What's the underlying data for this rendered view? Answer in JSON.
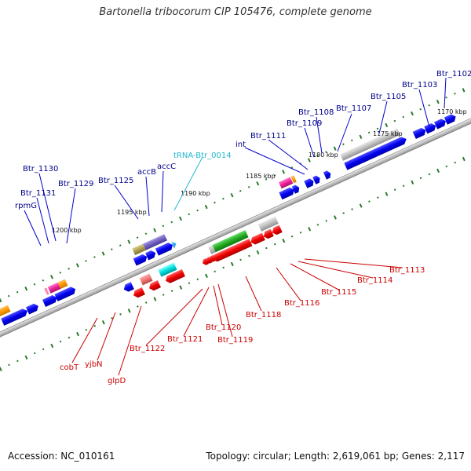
{
  "title": "Bartonella tribocorum CIP 105476, complete genome",
  "footer": {
    "accession": "Accession: NC_010161",
    "summary": "Topology: circular; Length: 2,619,061 bp; Genes: 2,117"
  },
  "colors": {
    "forward_label": "#00008b",
    "reverse_label": "#cc0000",
    "rna_label": "#22b8cc",
    "backbone": "#808080",
    "dots": "#2a7a2a"
  },
  "ticks": [
    "1170 kbp",
    "1175 kbp",
    "1180 kbp",
    "1185 kbp",
    "1190 kbp",
    "1195 kbp",
    "1200 kbp"
  ],
  "forward_labels": [
    "Btr_1102",
    "Btr_1103",
    "Btr_1105",
    "Btr_1107",
    "Btr_1108",
    "Btr_1109",
    "Btr_1111",
    "int",
    "tRNA-Btr_0014",
    "accC",
    "accB",
    "Btr_1125",
    "Btr_1129",
    "Btr_1130",
    "Btr_1131",
    "rpmG"
  ],
  "reverse_labels": [
    "Btr_1113",
    "Btr_1114",
    "Btr_1115",
    "Btr_1116",
    "Btr_1118",
    "Btr_1119",
    "Btr_1120",
    "Btr_1121",
    "Btr_1122",
    "glpD",
    "yjbN",
    "cobT"
  ]
}
